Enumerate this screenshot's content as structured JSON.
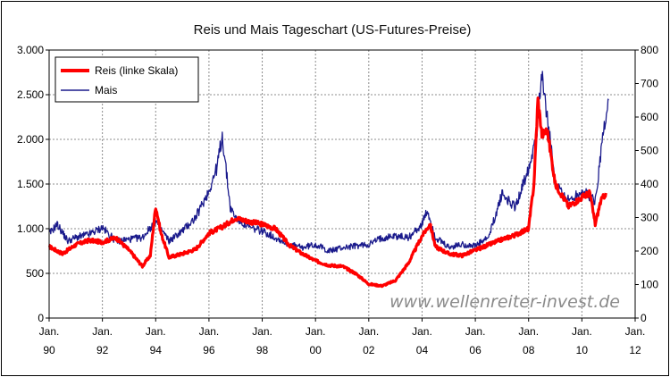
{
  "chart_data": {
    "type": "line",
    "title": "Reis und Mais Tageschart (US-Futures-Preise)",
    "watermark": "www.wellenreiter-invest.de",
    "x_axis": {
      "range": [
        1990,
        2012
      ],
      "ticks": [
        {
          "value": 1990,
          "month": "Jan.",
          "year": "90"
        },
        {
          "value": 1992,
          "month": "Jan.",
          "year": "92"
        },
        {
          "value": 1994,
          "month": "Jan.",
          "year": "94"
        },
        {
          "value": 1996,
          "month": "Jan.",
          "year": "96"
        },
        {
          "value": 1998,
          "month": "Jan.",
          "year": "98"
        },
        {
          "value": 2000,
          "month": "Jan.",
          "year": "00"
        },
        {
          "value": 2002,
          "month": "Jan.",
          "year": "02"
        },
        {
          "value": 2004,
          "month": "Jan.",
          "year": "04"
        },
        {
          "value": 2006,
          "month": "Jan.",
          "year": "06"
        },
        {
          "value": 2008,
          "month": "Jan.",
          "year": "08"
        },
        {
          "value": 2010,
          "month": "Jan.",
          "year": "10"
        },
        {
          "value": 2012,
          "month": "Jan.",
          "year": "12"
        }
      ]
    },
    "y_left": {
      "range": [
        0,
        3000
      ],
      "ticks": [
        {
          "value": 0,
          "label": "0"
        },
        {
          "value": 500,
          "label": "500"
        },
        {
          "value": 1000,
          "label": "1.000"
        },
        {
          "value": 1500,
          "label": "1.500"
        },
        {
          "value": 2000,
          "label": "2.000"
        },
        {
          "value": 2500,
          "label": "2.500"
        },
        {
          "value": 3000,
          "label": "3.000"
        }
      ]
    },
    "y_right": {
      "range": [
        0,
        800
      ],
      "ticks": [
        {
          "value": 0,
          "label": "0"
        },
        {
          "value": 100,
          "label": "100"
        },
        {
          "value": 200,
          "label": "200"
        },
        {
          "value": 300,
          "label": "300"
        },
        {
          "value": 400,
          "label": "400"
        },
        {
          "value": 500,
          "label": "500"
        },
        {
          "value": 600,
          "label": "600"
        },
        {
          "value": 700,
          "label": "700"
        },
        {
          "value": 800,
          "label": "800"
        }
      ]
    },
    "grid": true,
    "legend": {
      "placement": "top-left"
    },
    "series": [
      {
        "name": "Reis (linke Skala)",
        "axis": "left",
        "color": "#ff0000",
        "points": [
          [
            1990.0,
            800
          ],
          [
            1990.5,
            720
          ],
          [
            1991.0,
            820
          ],
          [
            1991.5,
            870
          ],
          [
            1992.0,
            850
          ],
          [
            1992.5,
            900
          ],
          [
            1993.0,
            760
          ],
          [
            1993.5,
            580
          ],
          [
            1993.8,
            700
          ],
          [
            1994.0,
            1250
          ],
          [
            1994.2,
            950
          ],
          [
            1994.5,
            680
          ],
          [
            1995.0,
            720
          ],
          [
            1995.5,
            770
          ],
          [
            1996.0,
            950
          ],
          [
            1996.5,
            1020
          ],
          [
            1997.0,
            1120
          ],
          [
            1997.5,
            1080
          ],
          [
            1998.0,
            1050
          ],
          [
            1998.5,
            1000
          ],
          [
            1999.0,
            820
          ],
          [
            1999.5,
            720
          ],
          [
            2000.0,
            640
          ],
          [
            2000.5,
            590
          ],
          [
            2001.0,
            580
          ],
          [
            2001.5,
            500
          ],
          [
            2002.0,
            380
          ],
          [
            2002.5,
            360
          ],
          [
            2003.0,
            420
          ],
          [
            2003.5,
            620
          ],
          [
            2004.0,
            920
          ],
          [
            2004.3,
            1050
          ],
          [
            2004.5,
            800
          ],
          [
            2005.0,
            720
          ],
          [
            2005.5,
            700
          ],
          [
            2006.0,
            760
          ],
          [
            2006.5,
            820
          ],
          [
            2007.0,
            880
          ],
          [
            2007.5,
            930
          ],
          [
            2008.0,
            1000
          ],
          [
            2008.2,
            1500
          ],
          [
            2008.35,
            2450
          ],
          [
            2008.5,
            2050
          ],
          [
            2008.7,
            2100
          ],
          [
            2009.0,
            1500
          ],
          [
            2009.5,
            1250
          ],
          [
            2010.0,
            1350
          ],
          [
            2010.3,
            1400
          ],
          [
            2010.5,
            1050
          ],
          [
            2010.7,
            1300
          ],
          [
            2010.9,
            1400
          ]
        ]
      },
      {
        "name": "Mais",
        "axis": "right",
        "color": "#1a1a8c",
        "points": [
          [
            1990.0,
            250
          ],
          [
            1990.3,
            280
          ],
          [
            1990.7,
            230
          ],
          [
            1991.0,
            240
          ],
          [
            1991.5,
            250
          ],
          [
            1992.0,
            270
          ],
          [
            1992.5,
            230
          ],
          [
            1993.0,
            235
          ],
          [
            1993.5,
            240
          ],
          [
            1994.0,
            290
          ],
          [
            1994.5,
            230
          ],
          [
            1995.0,
            260
          ],
          [
            1995.5,
            300
          ],
          [
            1996.0,
            380
          ],
          [
            1996.3,
            450
          ],
          [
            1996.5,
            545
          ],
          [
            1996.8,
            330
          ],
          [
            1997.0,
            300
          ],
          [
            1997.5,
            270
          ],
          [
            1998.0,
            260
          ],
          [
            1998.5,
            240
          ],
          [
            1999.0,
            220
          ],
          [
            1999.5,
            210
          ],
          [
            2000.0,
            220
          ],
          [
            2000.5,
            200
          ],
          [
            2001.0,
            210
          ],
          [
            2001.5,
            215
          ],
          [
            2002.0,
            220
          ],
          [
            2002.5,
            240
          ],
          [
            2003.0,
            245
          ],
          [
            2003.5,
            240
          ],
          [
            2004.0,
            280
          ],
          [
            2004.2,
            320
          ],
          [
            2004.5,
            240
          ],
          [
            2005.0,
            210
          ],
          [
            2005.5,
            220
          ],
          [
            2006.0,
            215
          ],
          [
            2006.5,
            240
          ],
          [
            2007.0,
            370
          ],
          [
            2007.5,
            330
          ],
          [
            2008.0,
            450
          ],
          [
            2008.3,
            550
          ],
          [
            2008.5,
            740
          ],
          [
            2008.7,
            600
          ],
          [
            2009.0,
            400
          ],
          [
            2009.5,
            350
          ],
          [
            2010.0,
            380
          ],
          [
            2010.5,
            350
          ],
          [
            2010.8,
            550
          ],
          [
            2011.0,
            650
          ]
        ]
      }
    ]
  }
}
